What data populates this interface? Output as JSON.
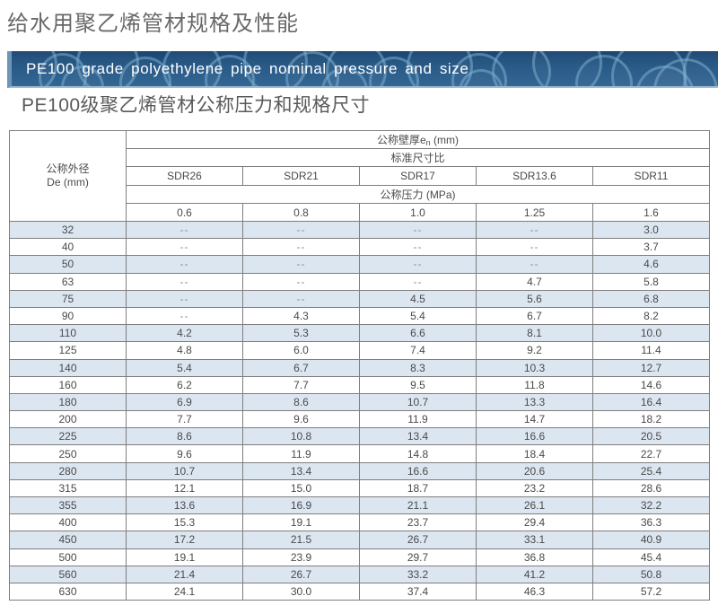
{
  "page": {
    "title": "给水用聚乙烯管材规格及性能",
    "banner": "PE100 grade polyethylene pipe nominal pressure and size",
    "subtitle": "PE100级聚乙烯管材公称压力和规格尺寸"
  },
  "colors": {
    "banner_blue": "#245685",
    "banner_ring_blue": "#7caed0",
    "banner_left_strip": "#6b96ba",
    "row_alt_blue": "#dce6f1",
    "table_border_gray": "#7e7e7e",
    "title_gray": "#696969",
    "cell_text_gray": "#4a4a4a"
  },
  "table": {
    "corner": {
      "line1": "公称外径",
      "line2": "De (mm)"
    },
    "wall": {
      "prefix": "公称壁厚e",
      "sub": "n",
      "suffix": " (mm)"
    },
    "sdr_label": "标准尺寸比",
    "sdr_columns": [
      "SDR26",
      "SDR21",
      "SDR17",
      "SDR13.6",
      "SDR11"
    ],
    "pressure_label": "公称压力 (MPa)",
    "pressures": [
      "0.6",
      "0.8",
      "1.0",
      "1.25",
      "1.6"
    ],
    "rows": [
      {
        "de": "32",
        "values": [
          "--",
          "--",
          "--",
          "--",
          "3.0"
        ]
      },
      {
        "de": "40",
        "values": [
          "--",
          "--",
          "--",
          "--",
          "3.7"
        ]
      },
      {
        "de": "50",
        "values": [
          "--",
          "--",
          "--",
          "--",
          "4.6"
        ]
      },
      {
        "de": "63",
        "values": [
          "--",
          "--",
          "--",
          "4.7",
          "5.8"
        ]
      },
      {
        "de": "75",
        "values": [
          "--",
          "--",
          "4.5",
          "5.6",
          "6.8"
        ]
      },
      {
        "de": "90",
        "values": [
          "--",
          "4.3",
          "5.4",
          "6.7",
          "8.2"
        ]
      },
      {
        "de": "110",
        "values": [
          "4.2",
          "5.3",
          "6.6",
          "8.1",
          "10.0"
        ]
      },
      {
        "de": "125",
        "values": [
          "4.8",
          "6.0",
          "7.4",
          "9.2",
          "11.4"
        ]
      },
      {
        "de": "140",
        "values": [
          "5.4",
          "6.7",
          "8.3",
          "10.3",
          "12.7"
        ]
      },
      {
        "de": "160",
        "values": [
          "6.2",
          "7.7",
          "9.5",
          "11.8",
          "14.6"
        ]
      },
      {
        "de": "180",
        "values": [
          "6.9",
          "8.6",
          "10.7",
          "13.3",
          "16.4"
        ]
      },
      {
        "de": "200",
        "values": [
          "7.7",
          "9.6",
          "11.9",
          "14.7",
          "18.2"
        ]
      },
      {
        "de": "225",
        "values": [
          "8.6",
          "10.8",
          "13.4",
          "16.6",
          "20.5"
        ]
      },
      {
        "de": "250",
        "values": [
          "9.6",
          "11.9",
          "14.8",
          "18.4",
          "22.7"
        ]
      },
      {
        "de": "280",
        "values": [
          "10.7",
          "13.4",
          "16.6",
          "20.6",
          "25.4"
        ]
      },
      {
        "de": "315",
        "values": [
          "12.1",
          "15.0",
          "18.7",
          "23.2",
          "28.6"
        ]
      },
      {
        "de": "355",
        "values": [
          "13.6",
          "16.9",
          "21.1",
          "26.1",
          "32.2"
        ]
      },
      {
        "de": "400",
        "values": [
          "15.3",
          "19.1",
          "23.7",
          "29.4",
          "36.3"
        ]
      },
      {
        "de": "450",
        "values": [
          "17.2",
          "21.5",
          "26.7",
          "33.1",
          "40.9"
        ]
      },
      {
        "de": "500",
        "values": [
          "19.1",
          "23.9",
          "29.7",
          "36.8",
          "45.4"
        ]
      },
      {
        "de": "560",
        "values": [
          "21.4",
          "26.7",
          "33.2",
          "41.2",
          "50.8"
        ]
      },
      {
        "de": "630",
        "values": [
          "24.1",
          "30.0",
          "37.4",
          "46.3",
          "57.2"
        ]
      }
    ]
  }
}
